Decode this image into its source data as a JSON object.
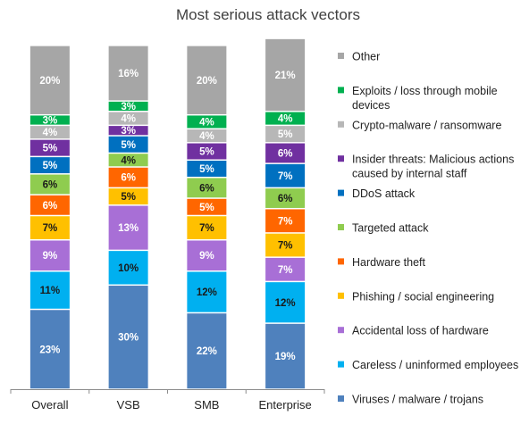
{
  "chart_data": {
    "type": "bar",
    "stacked": true,
    "title": "Most serious attack vectors",
    "xlabel": "",
    "ylabel": "",
    "ylim": [
      0,
      100
    ],
    "grid": false,
    "legend_position": "right",
    "categories": [
      "Overall",
      "VSB",
      "SMB",
      "Enterprise"
    ],
    "series": [
      {
        "name": "Viruses / malware / trojans",
        "color": "#4f81bd",
        "label_color": "#ffffff",
        "values": [
          23,
          30,
          22,
          19
        ]
      },
      {
        "name": "Careless / uninformed employees",
        "color": "#00b0f0",
        "label_color": "#1a1a1a",
        "values": [
          11,
          10,
          12,
          12
        ]
      },
      {
        "name": "Accidental loss of hardware",
        "color": "#a86fd6",
        "label_color": "#ffffff",
        "values": [
          9,
          13,
          9,
          7
        ]
      },
      {
        "name": "Phishing / social engineering",
        "color": "#ffc000",
        "label_color": "#1a1a1a",
        "values": [
          7,
          5,
          7,
          7
        ]
      },
      {
        "name": "Hardware theft",
        "color": "#ff6600",
        "label_color": "#ffffff",
        "values": [
          6,
          6,
          5,
          7
        ]
      },
      {
        "name": "Targeted attack",
        "color": "#8fcc4f",
        "label_color": "#1a1a1a",
        "values": [
          6,
          4,
          6,
          6
        ]
      },
      {
        "name": "DDoS attack",
        "color": "#0070c0",
        "label_color": "#ffffff",
        "values": [
          5,
          5,
          5,
          7
        ]
      },
      {
        "name": "Insider threats: Malicious actions caused by internal staff",
        "color": "#7030a0",
        "label_color": "#ffffff",
        "values": [
          5,
          3,
          5,
          6
        ]
      },
      {
        "name": "Crypto-malware / ransomware",
        "color": "#b7b7b7",
        "label_color": "#ffffff",
        "values": [
          4,
          4,
          4,
          5
        ]
      },
      {
        "name": "Exploits / loss through mobile devices",
        "color": "#00b050",
        "label_color": "#ffffff",
        "values": [
          3,
          3,
          4,
          4
        ]
      },
      {
        "name": "Other",
        "color": "#a6a6a6",
        "label_color": "#ffffff",
        "values": [
          20,
          16,
          20,
          21
        ]
      }
    ],
    "value_labels": [
      [
        "23%",
        "30%",
        "22%",
        "19%"
      ],
      [
        "11%",
        "10%",
        "12%",
        "12%"
      ],
      [
        "9%",
        "13%",
        "9%",
        "7%"
      ],
      [
        "7%",
        "5%",
        "7%",
        "7%"
      ],
      [
        "6%",
        "6%",
        "5%",
        "7%"
      ],
      [
        "6%",
        "4%",
        "6%",
        "6%"
      ],
      [
        "5%",
        "5%",
        "5%",
        "7%"
      ],
      [
        "5%",
        "3%",
        "5%",
        "6%"
      ],
      [
        "4%",
        "4%",
        "4%",
        "5%"
      ],
      [
        "3%",
        "3%",
        "4%",
        "4%"
      ],
      [
        "20%",
        "16%",
        "20%",
        "21%"
      ]
    ],
    "legend_lines": [
      [
        "Other"
      ],
      [
        "Exploits / loss through mobile",
        "devices"
      ],
      [
        "Crypto-malware / ransomware"
      ],
      [
        "Insider threats: Malicious actions",
        "caused by internal staff"
      ],
      [
        "DDoS attack"
      ],
      [
        "Targeted attack"
      ],
      [
        "Hardware theft"
      ],
      [
        "Phishing / social engineering"
      ],
      [
        "Accidental loss of hardware"
      ],
      [
        "Careless / uninformed employees"
      ],
      [
        "Viruses / malware / trojans"
      ]
    ],
    "legend_order": [
      10,
      9,
      8,
      7,
      6,
      5,
      4,
      3,
      2,
      1,
      0
    ]
  }
}
